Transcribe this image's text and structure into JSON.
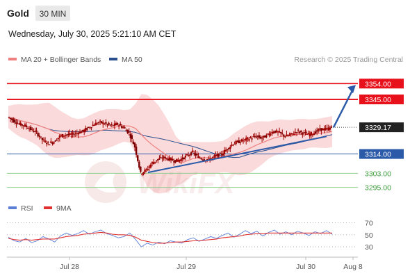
{
  "header": {
    "symbol": "Gold",
    "timeframe": "30 MIN",
    "datetime": "Wednesday, July 30, 2025 5:21:10 AM CET"
  },
  "legend": {
    "ma20_label": "MA 20 + Bollinger Bands",
    "ma50_label": "MA 50",
    "credit": "Research © 2025 Trading Central",
    "rsi_label": "RSI",
    "rsi_ma_label": "9MA"
  },
  "colors": {
    "resistance": "#e8101a",
    "support": "#2b5aa8",
    "target": "#3a9a3a",
    "ma20": "#f08080",
    "ma50": "#2b4f8f",
    "band_fill": "#f9d6d6",
    "candle": "#a00000",
    "rsi": "#5b7fd6",
    "rsi_ma": "#e03030",
    "arrow": "#2b5aa8",
    "current_price_bg": "#222222"
  },
  "chart_data": [
    {
      "type": "candlestick",
      "title": "Gold",
      "timeframe": "30 MIN",
      "x_tick_labels": [
        "Jul 28",
        "Jul 29",
        "Jul 30",
        "Aug 8"
      ],
      "ylim": [
        3285,
        3362
      ],
      "series": [
        {
          "name": "Price",
          "close_path": [
            3335,
            3333,
            3331,
            3330,
            3328,
            3326,
            3322,
            3320,
            3321,
            3324,
            3325,
            3325,
            3326,
            3327,
            3329,
            3331,
            3332,
            3331,
            3330,
            3331,
            3329,
            3326,
            3318,
            3303,
            3305,
            3309,
            3311,
            3312,
            3311,
            3310,
            3311,
            3313,
            3315,
            3312,
            3311,
            3311,
            3313,
            3314,
            3317,
            3320,
            3321,
            3322,
            3323,
            3324,
            3323,
            3325,
            3327,
            3326,
            3324,
            3325,
            3327,
            3326,
            3325,
            3326,
            3328,
            3328,
            3329
          ]
        }
      ],
      "levels": [
        {
          "label": "3354.00",
          "value": 3354.0,
          "kind": "resistance"
        },
        {
          "label": "3345.00",
          "value": 3345.0,
          "kind": "resistance"
        },
        {
          "label": "3329.17",
          "value": 3329.17,
          "kind": "current"
        },
        {
          "label": "3314.00",
          "value": 3314.0,
          "kind": "pivot"
        },
        {
          "label": "3303.00",
          "value": 3303.0,
          "kind": "target"
        },
        {
          "label": "3295.00",
          "value": 3295.0,
          "kind": "target"
        }
      ],
      "trendline": {
        "from": 3303.5,
        "to": 3324.0
      },
      "forecast_arrow": {
        "from": 3329.17,
        "to": 3354.0
      }
    },
    {
      "type": "line",
      "title": "RSI",
      "y_tick_labels": [
        "70",
        "50",
        "30"
      ],
      "ylim": [
        15,
        80
      ],
      "series": [
        {
          "name": "RSI",
          "values": [
            46,
            40,
            38,
            44,
            37,
            40,
            47,
            43,
            38,
            48,
            53,
            49,
            52,
            57,
            51,
            55,
            58,
            52,
            49,
            45,
            47,
            53,
            42,
            30,
            36,
            33,
            38,
            35,
            40,
            38,
            36,
            42,
            45,
            39,
            43,
            47,
            44,
            49,
            53,
            46,
            51,
            57,
            52,
            56,
            48,
            54,
            58,
            51,
            55,
            50,
            56,
            53,
            49,
            55,
            52,
            57,
            51
          ]
        },
        {
          "name": "9MA",
          "values": [
            44,
            42,
            41,
            42,
            41,
            42,
            43,
            43,
            43,
            45,
            47,
            48,
            49,
            51,
            52,
            53,
            54,
            53,
            51,
            50,
            50,
            49,
            46,
            41,
            39,
            37,
            36,
            36,
            37,
            38,
            38,
            39,
            40,
            40,
            41,
            42,
            43,
            45,
            46,
            47,
            48,
            50,
            51,
            52,
            52,
            53,
            53,
            53,
            53,
            53,
            53,
            53,
            53,
            53,
            53,
            53,
            53
          ]
        }
      ]
    }
  ]
}
